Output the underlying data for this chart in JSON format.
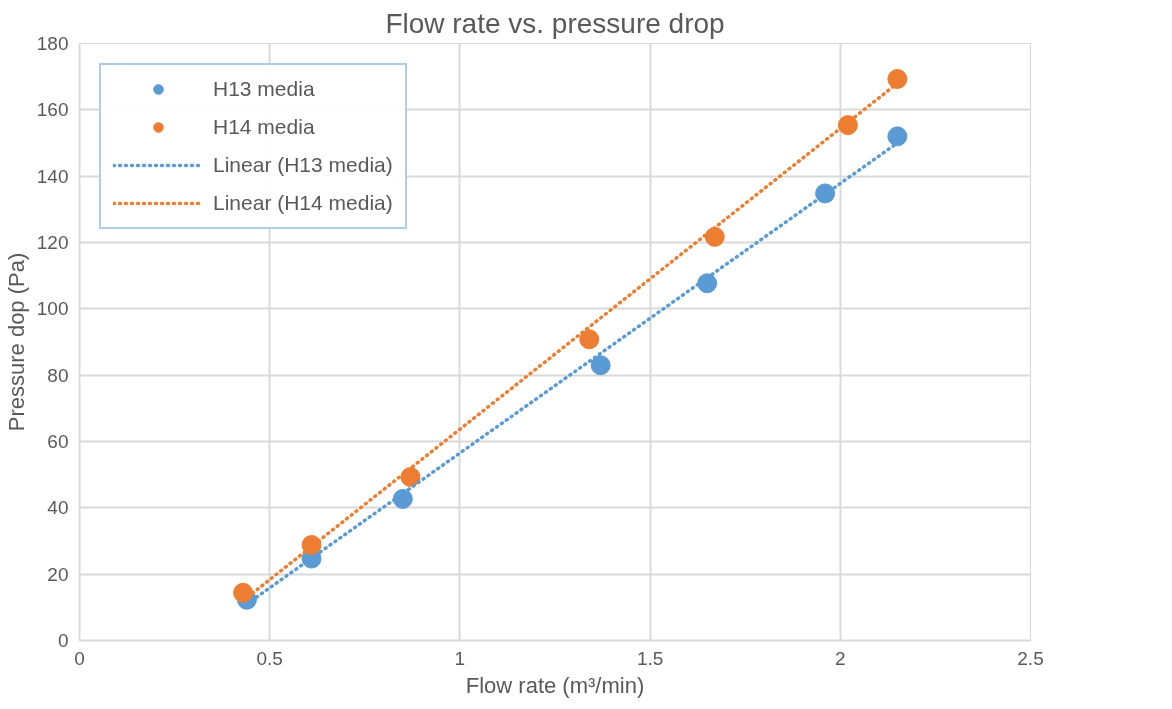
{
  "chart_data": {
    "type": "scatter",
    "title": "Flow rate vs. pressure drop",
    "xlabel": "Flow rate (m³/min)",
    "ylabel": "Pressure dop (Pa)",
    "xlim": [
      0,
      2.5
    ],
    "xticks": [
      0,
      0.5,
      1,
      1.5,
      2,
      2.5
    ],
    "ylim": [
      0,
      180
    ],
    "yticks": [
      0,
      20,
      40,
      60,
      80,
      100,
      120,
      140,
      160,
      180
    ],
    "grid": true,
    "legend": "top left",
    "marker": "circle",
    "series": [
      {
        "name": "H13 media",
        "color": "#5b9bd5",
        "x": [
          0.44,
          0.61,
          0.85,
          1.37,
          1.65,
          1.96,
          2.15
        ],
        "values": [
          12.3,
          24.7,
          42.7,
          83,
          107.7,
          134.8,
          152
        ]
      },
      {
        "name": "H14 media",
        "color": "#ed7d31",
        "x": [
          0.43,
          0.61,
          0.87,
          1.34,
          1.67,
          2.02,
          2.15
        ],
        "values": [
          14.4,
          28.8,
          49.3,
          90.8,
          121.7,
          155.4,
          169.3
        ]
      },
      {
        "name": "Linear (H13 media)",
        "type": "line",
        "line_style": "dotted",
        "marker": "none",
        "color": "#5b9bd5",
        "x": [
          0.44,
          2.15
        ],
        "values": [
          11,
          150
        ]
      },
      {
        "name": "Linear (H14 media)",
        "type": "line",
        "line_style": "dotted",
        "marker": "none",
        "color": "#ed7d31",
        "x": [
          0.43,
          2.15
        ],
        "values": [
          12,
          168
        ]
      }
    ]
  }
}
